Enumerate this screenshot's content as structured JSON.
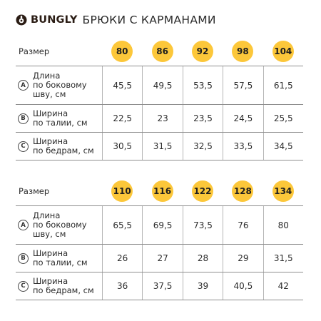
{
  "header": {
    "brand": "BUNGLY",
    "title": "БРЮКИ С КАРМАНАМИ",
    "logo_icon": "bungly-logo-icon"
  },
  "colors": {
    "accent": "#fcc73a",
    "line": "#8e8e8e",
    "text": "#2b2b2b"
  },
  "tables": [
    {
      "size_label": "Размер",
      "sizes": [
        "80",
        "86",
        "92",
        "98",
        "104"
      ],
      "rows": [
        {
          "badge": "A",
          "label_lines": [
            "Длина",
            "по боковому",
            "шву, см"
          ],
          "values": [
            "45,5",
            "49,5",
            "53,5",
            "57,5",
            "61,5"
          ]
        },
        {
          "badge": "B",
          "label_lines": [
            "Ширина",
            "по талии, см"
          ],
          "values": [
            "22,5",
            "23",
            "23,5",
            "24,5",
            "25,5"
          ]
        },
        {
          "badge": "C",
          "label_lines": [
            "Ширина",
            "по бедрам, см"
          ],
          "values": [
            "30,5",
            "31,5",
            "32,5",
            "33,5",
            "34,5"
          ]
        }
      ]
    },
    {
      "size_label": "Размер",
      "sizes": [
        "110",
        "116",
        "122",
        "128",
        "134"
      ],
      "rows": [
        {
          "badge": "A",
          "label_lines": [
            "Длина",
            "по боковому",
            "шву, см"
          ],
          "values": [
            "65,5",
            "69,5",
            "73,5",
            "76",
            "80"
          ]
        },
        {
          "badge": "B",
          "label_lines": [
            "Ширина",
            "по талии, см"
          ],
          "values": [
            "26",
            "27",
            "28",
            "29",
            "31,5"
          ]
        },
        {
          "badge": "C",
          "label_lines": [
            "Ширина",
            "по бедрам, см"
          ],
          "values": [
            "36",
            "37,5",
            "39",
            "40,5",
            "42"
          ]
        }
      ]
    }
  ]
}
